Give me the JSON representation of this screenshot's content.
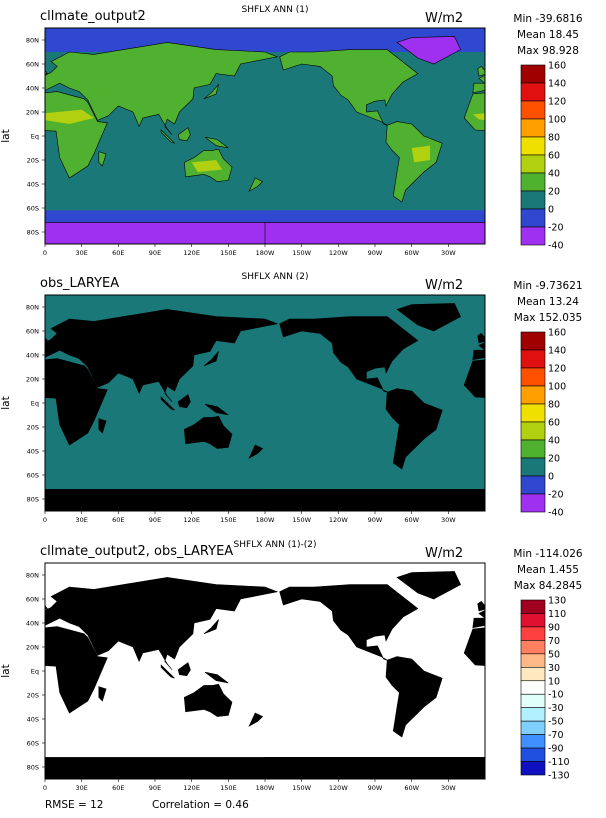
{
  "panels": [
    {
      "title": "cllmate_output2",
      "subtitle": "SHFLX ANN (1)",
      "units": "W/m2",
      "ylabel": "lat",
      "stats": [
        "Min -39.6816",
        "Mean 18.45",
        "Max 98.928"
      ],
      "colorbar": {
        "levels": [
          160,
          140,
          120,
          100,
          80,
          60,
          40,
          20,
          0,
          -20,
          -40
        ],
        "colors": [
          "#a00000",
          "#e01010",
          "#ff5000",
          "#ffa000",
          "#f0e000",
          "#b0d010",
          "#50b030",
          "#1a7878",
          "#3048d0",
          "#a030f0"
        ]
      }
    },
    {
      "title": "obs_LARYEA",
      "subtitle": "SHFLX ANN (2)",
      "units": "W/m2",
      "ylabel": "lat",
      "stats": [
        "Min -9.73621",
        "Mean 13.24",
        "Max 152.035"
      ],
      "colorbar": {
        "levels": [
          160,
          140,
          120,
          100,
          80,
          60,
          40,
          20,
          0,
          -20,
          -40
        ],
        "colors": [
          "#a00000",
          "#e01010",
          "#ff5000",
          "#ffa000",
          "#f0e000",
          "#b0d010",
          "#50b030",
          "#1a7878",
          "#3048d0",
          "#a030f0"
        ]
      }
    },
    {
      "title": "cllmate_output2, obs_LARYEA",
      "subtitle": "SHFLX ANN (1)-(2)",
      "units": "W/m2",
      "ylabel": "lat",
      "stats": [
        "Min -114.026",
        "Mean 1.455",
        "Max 84.2845"
      ],
      "colorbar": {
        "levels": [
          130,
          110,
          90,
          70,
          50,
          30,
          10,
          -10,
          -30,
          -50,
          -70,
          -90,
          -110,
          -130
        ],
        "colors": [
          "#a00020",
          "#e01030",
          "#ff4040",
          "#ff8060",
          "#ffb888",
          "#ffe8c0",
          "#ffffff",
          "#e0fffa",
          "#b0f0ff",
          "#80d0ff",
          "#4090ff",
          "#2050e0",
          "#1010c0"
        ]
      }
    }
  ],
  "xticks": [
    "0",
    "30E",
    "60E",
    "90E",
    "120E",
    "150E",
    "180W",
    "150W",
    "120W",
    "90W",
    "60W",
    "30W"
  ],
  "yticks": [
    "80N",
    "60N",
    "40N",
    "20N",
    "Eq",
    "20S",
    "40S",
    "60S",
    "80S"
  ],
  "footer": {
    "rmse": "RMSE = 12",
    "correlation": "Correlation = 0.46"
  }
}
